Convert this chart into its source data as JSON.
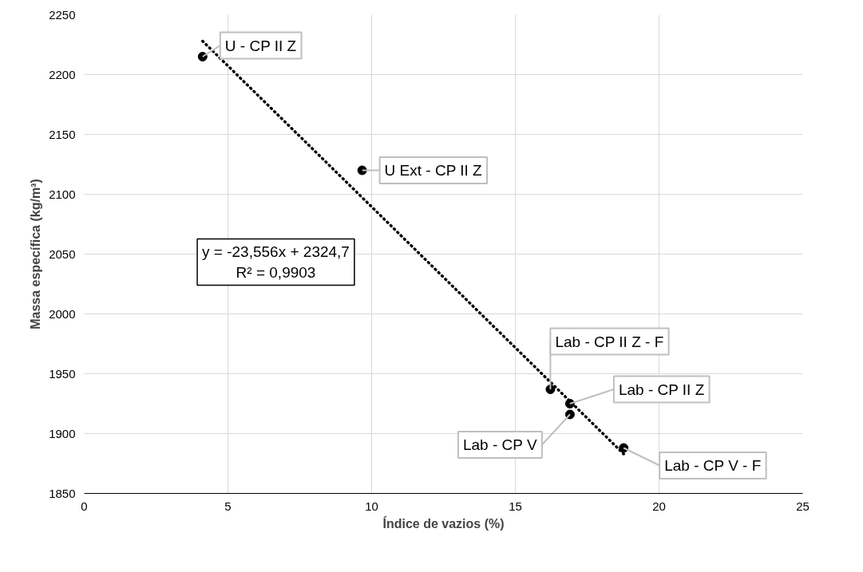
{
  "chart_data": {
    "type": "scatter",
    "xlabel": "Índice de vazios (%)",
    "ylabel": "Massa específica (kg/m³)",
    "xlim": [
      0,
      25
    ],
    "ylim": [
      1850,
      2250
    ],
    "xticks": [
      0,
      5,
      10,
      15,
      20,
      25
    ],
    "yticks": [
      1850,
      1900,
      1950,
      2000,
      2050,
      2100,
      2150,
      2200,
      2250
    ],
    "grid": true,
    "series": [
      {
        "marker": "circle",
        "color": "#000000",
        "x": [
          4.12,
          9.67,
          16.22,
          16.9,
          16.9,
          18.77
        ],
        "values": [
          2215,
          2120,
          1937,
          1925,
          1916,
          1888
        ]
      },
      {
        "type": "line",
        "line_style": "dotted",
        "color": "#000000",
        "x": [
          4.12,
          18.77
        ],
        "values": [
          2228,
          1883
        ]
      }
    ],
    "annotations": [
      {
        "text": "U - CP II Z",
        "x": 4.12,
        "y": 2215
      },
      {
        "text": "U Ext - CP II Z",
        "x": 9.67,
        "y": 2120
      },
      {
        "text": "Lab - CP II Z - F",
        "x": 16.22,
        "y": 1937
      },
      {
        "text": "Lab - CP II Z",
        "x": 16.9,
        "y": 1925
      },
      {
        "text": "Lab - CP V",
        "x": 16.9,
        "y": 1916
      },
      {
        "text": "Lab - CP V - F",
        "x": 18.77,
        "y": 1888
      },
      "y = -23,556x + 2324,7\nR² = 0,9903"
    ]
  }
}
